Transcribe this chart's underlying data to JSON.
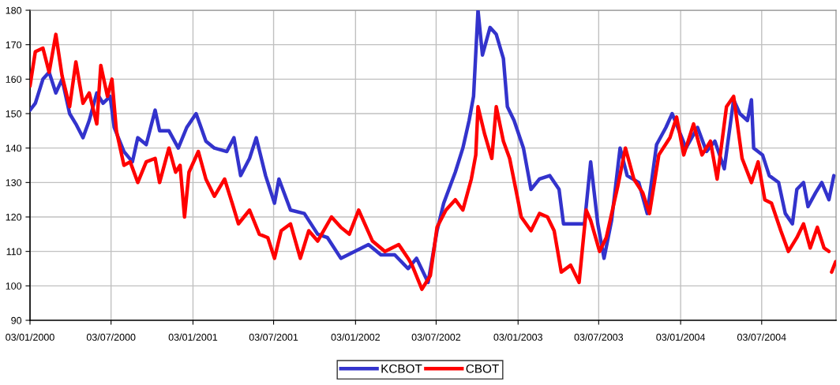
{
  "chart_data": {
    "type": "line",
    "xlim": [
      "2000-01-03",
      "2004-12-17"
    ],
    "xticks": [
      {
        "value": "2000-01-03",
        "label": "03/01/2000"
      },
      {
        "value": "2000-07-03",
        "label": "03/07/2000"
      },
      {
        "value": "2001-01-03",
        "label": "03/01/2001"
      },
      {
        "value": "2001-07-03",
        "label": "03/07/2001"
      },
      {
        "value": "2002-01-03",
        "label": "03/01/2002"
      },
      {
        "value": "2002-07-03",
        "label": "03/07/2002"
      },
      {
        "value": "2003-01-03",
        "label": "03/01/2003"
      },
      {
        "value": "2003-07-03",
        "label": "03/07/2003"
      },
      {
        "value": "2004-01-03",
        "label": "03/01/2004"
      },
      {
        "value": "2004-07-03",
        "label": "03/07/2004"
      }
    ],
    "ylim": [
      90,
      180
    ],
    "yticks": [
      90,
      100,
      110,
      120,
      130,
      140,
      150,
      160,
      170,
      180
    ],
    "grid": true,
    "legend": "bottom",
    "marker": "none",
    "line_style": "solid",
    "series": [
      {
        "name": "KCBOT",
        "color": "#3333cc",
        "x": [
          "2000-01-03",
          "2000-01-15",
          "2000-02-01",
          "2000-02-15",
          "2000-03-01",
          "2000-03-15",
          "2000-04-01",
          "2000-04-15",
          "2000-05-01",
          "2000-05-15",
          "2000-06-01",
          "2000-06-15",
          "2000-07-01",
          "2000-07-10",
          "2000-08-01",
          "2000-08-20",
          "2000-09-01",
          "2000-09-20",
          "2000-10-10",
          "2000-10-20",
          "2000-11-10",
          "2000-12-01",
          "2000-12-20",
          "2001-01-10",
          "2001-02-01",
          "2001-02-20",
          "2001-03-20",
          "2001-04-05",
          "2001-04-20",
          "2001-05-10",
          "2001-05-25",
          "2001-06-15",
          "2001-07-05",
          "2001-07-15",
          "2001-08-10",
          "2001-09-10",
          "2001-10-10",
          "2001-11-01",
          "2001-12-01",
          "2002-01-01",
          "2002-02-01",
          "2002-03-01",
          "2002-04-01",
          "2002-05-01",
          "2002-05-20",
          "2002-06-15",
          "2002-07-05",
          "2002-07-20",
          "2002-08-15",
          "2002-09-01",
          "2002-09-15",
          "2002-09-25",
          "2002-10-05",
          "2002-10-15",
          "2002-11-01",
          "2002-11-15",
          "2002-12-01",
          "2002-12-10",
          "2002-12-25",
          "2003-01-15",
          "2003-02-01",
          "2003-02-20",
          "2003-03-15",
          "2003-04-05",
          "2003-04-15",
          "2003-05-15",
          "2003-06-01",
          "2003-06-15",
          "2003-07-01",
          "2003-07-15",
          "2003-08-01",
          "2003-08-20",
          "2003-09-05",
          "2003-10-01",
          "2003-10-20",
          "2003-11-10",
          "2003-12-01",
          "2003-12-15",
          "2004-01-15",
          "2004-02-10",
          "2004-03-01",
          "2004-03-20",
          "2004-04-10",
          "2004-05-01",
          "2004-05-15",
          "2004-06-01",
          "2004-06-10",
          "2004-06-15",
          "2004-07-05",
          "2004-07-20",
          "2004-08-10",
          "2004-08-25",
          "2004-09-10",
          "2004-09-20",
          "2004-10-05",
          "2004-10-15",
          "2004-11-01",
          "2004-11-15",
          "2004-12-01",
          "2004-12-12"
        ],
        "values": [
          151,
          153,
          160,
          162,
          156,
          160,
          150,
          147,
          143,
          148,
          156,
          153,
          155,
          146,
          139,
          136,
          143,
          141,
          151,
          145,
          145,
          140,
          146,
          150,
          142,
          140,
          139,
          143,
          132,
          137,
          143,
          132,
          124,
          131,
          122,
          121,
          115,
          114,
          108,
          110,
          112,
          109,
          109,
          105,
          108,
          101,
          116,
          124,
          133,
          140,
          148,
          155,
          180,
          167,
          175,
          173,
          166,
          152,
          148,
          140,
          128,
          131,
          132,
          128,
          118,
          118,
          118,
          136,
          118,
          108,
          119,
          140,
          132,
          130,
          121,
          141,
          146,
          150,
          140,
          146,
          139,
          142,
          134,
          154,
          150,
          148,
          154,
          140,
          138,
          132,
          130,
          121,
          118,
          128,
          130,
          123,
          127,
          130,
          125,
          132
        ]
      },
      {
        "name": "CBOT",
        "color": "#ff0000",
        "x": [
          "2000-01-03",
          "2000-01-15",
          "2000-02-01",
          "2000-02-15",
          "2000-03-01",
          "2000-03-15",
          "2000-04-01",
          "2000-04-15",
          "2000-05-01",
          "2000-05-15",
          "2000-06-01",
          "2000-06-10",
          "2000-06-25",
          "2000-07-05",
          "2000-07-15",
          "2000-08-01",
          "2000-08-15",
          "2000-09-01",
          "2000-09-20",
          "2000-10-10",
          "2000-10-20",
          "2000-11-10",
          "2000-11-25",
          "2000-12-05",
          "2000-12-15",
          "2000-12-25",
          "2001-01-15",
          "2001-02-01",
          "2001-02-20",
          "2001-03-15",
          "2001-04-01",
          "2001-04-15",
          "2001-05-10",
          "2001-06-01",
          "2001-06-20",
          "2001-07-05",
          "2001-07-20",
          "2001-08-10",
          "2001-09-01",
          "2001-09-20",
          "2001-10-10",
          "2001-11-10",
          "2001-12-01",
          "2001-12-20",
          "2002-01-10",
          "2002-02-10",
          "2002-03-10",
          "2002-04-10",
          "2002-05-01",
          "2002-05-10",
          "2002-06-01",
          "2002-06-20",
          "2002-07-05",
          "2002-07-25",
          "2002-08-15",
          "2002-09-01",
          "2002-09-20",
          "2002-09-30",
          "2002-10-05",
          "2002-10-20",
          "2002-11-05",
          "2002-11-15",
          "2002-12-01",
          "2002-12-15",
          "2003-01-01",
          "2003-01-10",
          "2003-02-01",
          "2003-02-20",
          "2003-03-10",
          "2003-03-25",
          "2003-04-10",
          "2003-05-01",
          "2003-05-20",
          "2003-06-05",
          "2003-06-15",
          "2003-07-05",
          "2003-07-20",
          "2003-08-15",
          "2003-09-01",
          "2003-09-20",
          "2003-10-10",
          "2003-10-25",
          "2003-11-15",
          "2003-12-10",
          "2003-12-25",
          "2004-01-10",
          "2004-02-01",
          "2004-02-20",
          "2004-03-10",
          "2004-03-25",
          "2004-04-15",
          "2004-05-01",
          "2004-05-20",
          "2004-06-10",
          "2004-06-25",
          "2004-07-10",
          "2004-07-25",
          "2004-08-15",
          "2004-09-01",
          "2004-09-20",
          "2004-10-05",
          "2004-10-20",
          "2004-11-05",
          "2004-11-20",
          "2004-12-01",
          "2004-12-04",
          "2004-12-07",
          "2004-12-16"
        ],
        "values": [
          158,
          168,
          169,
          162,
          173,
          161,
          152,
          165,
          153,
          156,
          147,
          164,
          155,
          160,
          145,
          135,
          136,
          130,
          136,
          137,
          130,
          140,
          133,
          135,
          120,
          133,
          139,
          131,
          126,
          131,
          124,
          118,
          122,
          115,
          114,
          108,
          116,
          118,
          108,
          116,
          113,
          120,
          117,
          115,
          122,
          113,
          110,
          112,
          108,
          106,
          99,
          103,
          117,
          122,
          125,
          122,
          131,
          138,
          152,
          144,
          137,
          152,
          142,
          137,
          126,
          120,
          116,
          121,
          120,
          116,
          104,
          106,
          101,
          122,
          119,
          110,
          114,
          129,
          140,
          131,
          127,
          121,
          138,
          143,
          149,
          138,
          147,
          138,
          142,
          131,
          152,
          155,
          137,
          130,
          136,
          125,
          124,
          116,
          110,
          114,
          118,
          111,
          117,
          111,
          110,
          null,
          104,
          107
        ]
      }
    ]
  }
}
